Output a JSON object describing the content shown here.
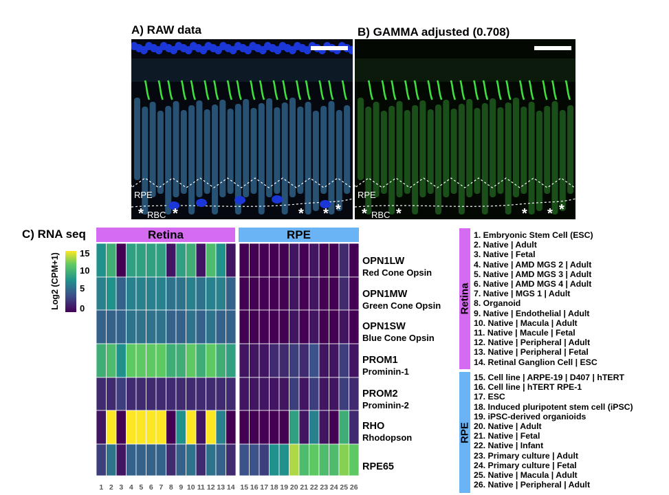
{
  "panels": {
    "a_title": "A) RAW data",
    "b_title": "B) GAMMA adjusted (0.708)",
    "c_title": "C) RNA seq",
    "rpe_label": "RPE",
    "rbc_label": "RBC",
    "star": "*"
  },
  "colors": {
    "retina_band": "#d56bf0",
    "rpe_band": "#6ab4f5",
    "micro_a_nuclei": "#1c37d8",
    "micro_a_segments": "#2f5f86",
    "micro_b_segments": "#1f5c1f",
    "micro_cone": "#3ee03e"
  },
  "chart_data": {
    "type": "heatmap",
    "title": "",
    "colorbar_label": "Log2 (CPM+1)",
    "colorbar_ticks": [
      15,
      10,
      5,
      0
    ],
    "value_range": [
      0,
      16
    ],
    "groups": [
      {
        "name": "Retina",
        "columns": [
          1,
          2,
          3,
          4,
          5,
          6,
          7,
          8,
          9,
          10,
          11,
          12,
          13,
          14
        ]
      },
      {
        "name": "RPE",
        "columns": [
          15,
          16,
          17,
          18,
          19,
          20,
          21,
          22,
          23,
          24,
          25,
          26
        ]
      }
    ],
    "x": [
      "1",
      "2",
      "3",
      "4",
      "5",
      "6",
      "7",
      "8",
      "9",
      "10",
      "11",
      "12",
      "13",
      "14",
      "15",
      "16",
      "17",
      "18",
      "19",
      "20",
      "21",
      "22",
      "23",
      "24",
      "25",
      "26"
    ],
    "rows": [
      {
        "gene": "OPN1LW",
        "name": "Red Cone Opsin",
        "values": [
          8,
          10,
          0,
          9,
          9,
          9,
          9,
          1,
          9,
          10,
          1,
          11,
          8,
          1,
          0,
          0,
          0,
          0,
          0,
          1,
          0,
          1,
          0,
          0,
          2,
          0
        ]
      },
      {
        "gene": "OPN1MW",
        "name": "Green Cone Opsin",
        "values": [
          7,
          8,
          5,
          7,
          7,
          7,
          7,
          6,
          6,
          7,
          6,
          7,
          7,
          5,
          0,
          0,
          0,
          0,
          0,
          1,
          0,
          1,
          0,
          0,
          2,
          0
        ]
      },
      {
        "gene": "OPN1SW",
        "name": "Blue Cone Opsin",
        "values": [
          5,
          5,
          5,
          6,
          6,
          6,
          6,
          5,
          5,
          6,
          5,
          6,
          5,
          5,
          0,
          0,
          0,
          0,
          0,
          1,
          0,
          1,
          0,
          0,
          1,
          0
        ]
      },
      {
        "gene": "PROM1",
        "name": "Prominin-1",
        "values": [
          10,
          11,
          8,
          12,
          12,
          12,
          12,
          10,
          10,
          12,
          10,
          12,
          10,
          9,
          1,
          1,
          1,
          2,
          2,
          3,
          2,
          4,
          1,
          1,
          3,
          1
        ]
      },
      {
        "gene": "PROM2",
        "name": "Prominin-2",
        "values": [
          2,
          2,
          3,
          2,
          2,
          2,
          2,
          2,
          2,
          2,
          2,
          2,
          2,
          2,
          1,
          1,
          1,
          1,
          1,
          3,
          1,
          3,
          1,
          1,
          3,
          2
        ]
      },
      {
        "gene": "RHO",
        "name": "Rhodopson",
        "values": [
          1,
          16,
          0,
          16,
          16,
          16,
          16,
          0,
          8,
          16,
          1,
          16,
          7,
          0,
          0,
          0,
          0,
          0,
          0,
          9,
          1,
          7,
          1,
          0,
          10,
          2
        ]
      },
      {
        "gene": "RPE65",
        "name": "",
        "values": [
          3,
          6,
          1,
          5,
          5,
          5,
          5,
          2,
          5,
          6,
          2,
          6,
          5,
          2,
          4,
          4,
          3,
          8,
          8,
          14,
          11,
          12,
          11,
          11,
          13,
          12
        ]
      }
    ]
  },
  "legend": {
    "retina_label": "Retina",
    "rpe_label": "RPE",
    "retina_items": [
      "1. Embryonic Stem Cell (ESC)",
      "2. Native | Adult",
      "3. Native | Fetal",
      "4. Native | AMD MGS 2 | Adult",
      "5. Native | AMD MGS 3 | Adult",
      "6. Native | AMD MGS 4 | Adult",
      "7. Native | MGS 1 | Adult",
      "8. Organoid",
      "9. Native | Endothelial | Adult",
      "10. Native | Macula | Adult",
      "11. Native | Macule | Fetal",
      "12. Native | Peripheral | Adult",
      "13. Native | Peripheral | Fetal",
      "14. Retinal Ganglion Cell | ESC"
    ],
    "rpe_items": [
      "15. Cell line | ARPE-19 | D407 | hTERT",
      "16. Cell line | hTERT RPE-1",
      "17. ESC",
      "18. Induced pluripotent stem cell (iPSC)",
      "19. iPSC-derived organioids",
      "20. Native | Adult",
      "21. Native | Fetal",
      "22. Native | Infant",
      "23. Primary culture | Adult",
      "24. Primary culture | Fetal",
      "25. Native | Macula | Adult",
      "26. Native | Peripheral | Adult"
    ]
  }
}
